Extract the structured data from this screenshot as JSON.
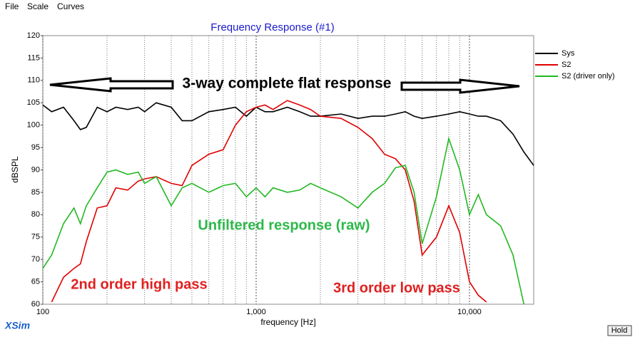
{
  "menu": [
    "File",
    "Scale",
    "Curves"
  ],
  "chart_data": {
    "type": "line",
    "title": "Frequency Response (#1)",
    "xlabel": "frequency [Hz]",
    "ylabel": "dBSPL",
    "xscale": "log",
    "xlim": [
      100,
      20000
    ],
    "xticks": [
      100,
      {
        "value": 1000,
        "label": "1,000"
      },
      {
        "value": 10000,
        "label": "10,000"
      }
    ],
    "minor_xticks": [
      200,
      300,
      400,
      500,
      600,
      700,
      800,
      900,
      2000,
      3000,
      4000,
      5000,
      6000,
      7000,
      8000,
      9000
    ],
    "ylim": [
      60,
      120
    ],
    "yticks": [
      60,
      65,
      70,
      75,
      80,
      85,
      90,
      95,
      100,
      105,
      110,
      115,
      120
    ],
    "grid": true,
    "legend": "right",
    "x": [
      100,
      110,
      125,
      140,
      150,
      160,
      180,
      200,
      220,
      250,
      280,
      300,
      340,
      400,
      450,
      500,
      600,
      700,
      800,
      900,
      1000,
      1100,
      1200,
      1400,
      1600,
      1800,
      2000,
      2500,
      3000,
      3500,
      4000,
      4500,
      5000,
      5500,
      6000,
      7000,
      8000,
      9000,
      10000,
      11000,
      12000,
      14000,
      16000,
      18000,
      20000
    ],
    "series": [
      {
        "name": "Sys",
        "color": "#000000",
        "values": [
          104.5,
          103,
          104,
          101,
          99,
          99.5,
          104,
          103,
          104,
          103.5,
          104,
          103,
          105,
          104,
          101,
          101,
          103,
          103.5,
          104,
          102,
          104,
          103,
          103,
          104,
          103,
          102,
          102,
          102.5,
          101.5,
          102,
          102,
          102.5,
          103,
          102,
          101.5,
          102,
          102.5,
          103,
          102.5,
          102,
          102,
          101,
          98,
          94,
          91
        ]
      },
      {
        "name": "S2",
        "color": "#e00000",
        "values": [
          null,
          60.5,
          66,
          68,
          69,
          74,
          81.5,
          82,
          86,
          85.5,
          87.5,
          88,
          88.5,
          87,
          86.5,
          91,
          93.5,
          94.5,
          100,
          103,
          104,
          104.5,
          103.5,
          105.5,
          104.5,
          103.5,
          102,
          101.5,
          99.5,
          97,
          93.5,
          92.5,
          90,
          83,
          71,
          75,
          82,
          76,
          65,
          62,
          60.5,
          null,
          null,
          null,
          null
        ]
      },
      {
        "name": "S2 (driver only)",
        "color": "#22b822",
        "values": [
          68,
          71,
          78,
          81.5,
          78,
          82,
          86,
          89.5,
          90,
          89,
          89.5,
          87,
          88.5,
          82,
          86,
          87,
          85,
          86.5,
          87,
          84,
          86,
          84,
          86,
          85,
          85.5,
          87,
          86,
          84,
          81.5,
          85,
          87,
          90.5,
          91,
          85,
          73.5,
          84,
          97,
          90,
          80,
          84.5,
          80,
          77.5,
          71,
          60,
          null
        ]
      }
    ],
    "annotations": [
      {
        "text": "3-way complete flat response",
        "color": "#000000"
      },
      {
        "text": "Unfiltered response (raw)",
        "color": "#2db84a"
      },
      {
        "text": "2nd order high pass",
        "color": "#e02020"
      },
      {
        "text": "3rd order low pass",
        "color": "#e02020"
      }
    ]
  },
  "footer": {
    "app": "XSim",
    "button": "Hold"
  }
}
